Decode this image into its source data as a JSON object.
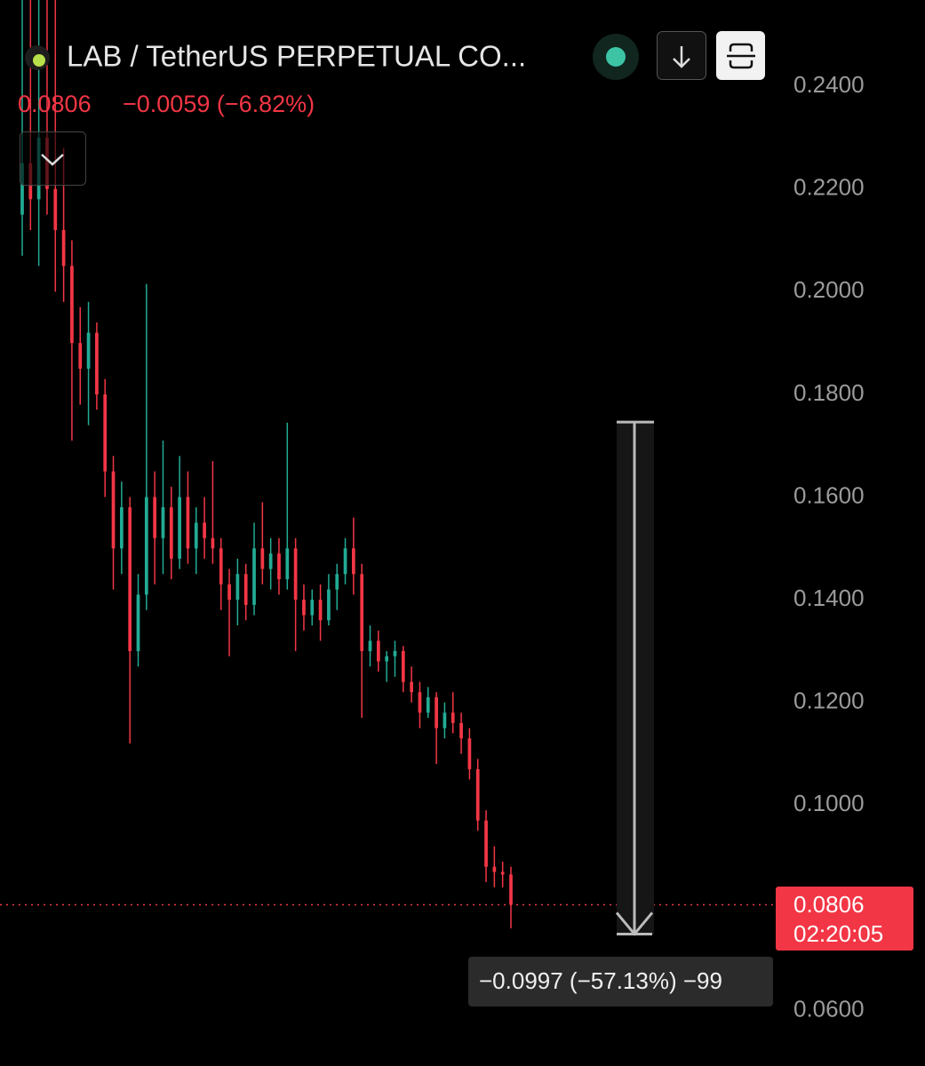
{
  "header": {
    "symbol": "LAB / TetherUS PERPETUAL CO...",
    "price": "0.0806",
    "change": "−0.0059 (−6.82%)"
  },
  "chart_data": {
    "type": "candlestick",
    "open": [
      0.215,
      0.225,
      0.218,
      0.23,
      0.22,
      0.212,
      0.205,
      0.19,
      0.185,
      0.192,
      0.18,
      0.165,
      0.15,
      0.158,
      0.13,
      0.141,
      0.16,
      0.152,
      0.158,
      0.148,
      0.16,
      0.15,
      0.155,
      0.152,
      0.15,
      0.143,
      0.14,
      0.145,
      0.139,
      0.15,
      0.146,
      0.149,
      0.144,
      0.15,
      0.14,
      0.137,
      0.14,
      0.136,
      0.142,
      0.145,
      0.15,
      0.145,
      0.13,
      0.132,
      0.128,
      0.129,
      0.13,
      0.124,
      0.122,
      0.118,
      0.121,
      0.115,
      0.118,
      0.116,
      0.113,
      0.107,
      0.097,
      0.088,
      0.087,
      0.0865
    ],
    "high": [
      0.2568,
      0.2568,
      0.2568,
      0.2568,
      0.2568,
      0.228,
      0.21,
      0.197,
      0.198,
      0.194,
      0.183,
      0.168,
      0.163,
      0.16,
      0.145,
      0.2015,
      0.165,
      0.171,
      0.162,
      0.168,
      0.165,
      0.158,
      0.16,
      0.167,
      0.152,
      0.146,
      0.148,
      0.147,
      0.155,
      0.159,
      0.152,
      0.152,
      0.1745,
      0.152,
      0.143,
      0.142,
      0.143,
      0.145,
      0.147,
      0.152,
      0.156,
      0.147,
      0.135,
      0.134,
      0.13,
      0.132,
      0.131,
      0.127,
      0.124,
      0.123,
      0.122,
      0.12,
      0.122,
      0.118,
      0.115,
      0.109,
      0.099,
      0.092,
      0.089,
      0.088
    ],
    "low": [
      0.207,
      0.212,
      0.205,
      0.215,
      0.2,
      0.198,
      0.171,
      0.178,
      0.174,
      0.177,
      0.16,
      0.142,
      0.145,
      0.112,
      0.127,
      0.138,
      0.143,
      0.145,
      0.144,
      0.146,
      0.147,
      0.145,
      0.148,
      0.147,
      0.138,
      0.129,
      0.135,
      0.136,
      0.137,
      0.143,
      0.142,
      0.141,
      0.142,
      0.13,
      0.134,
      0.135,
      0.132,
      0.135,
      0.138,
      0.143,
      0.141,
      0.117,
      0.127,
      0.126,
      0.124,
      0.125,
      0.122,
      0.12,
      0.115,
      0.117,
      0.108,
      0.113,
      0.114,
      0.11,
      0.105,
      0.095,
      0.085,
      0.084,
      0.084,
      0.076
    ],
    "close": [
      0.225,
      0.218,
      0.23,
      0.22,
      0.212,
      0.205,
      0.19,
      0.185,
      0.192,
      0.18,
      0.165,
      0.15,
      0.158,
      0.13,
      0.141,
      0.16,
      0.152,
      0.158,
      0.148,
      0.16,
      0.15,
      0.155,
      0.152,
      0.15,
      0.143,
      0.14,
      0.145,
      0.139,
      0.15,
      0.146,
      0.149,
      0.144,
      0.15,
      0.14,
      0.137,
      0.14,
      0.136,
      0.142,
      0.145,
      0.15,
      0.145,
      0.13,
      0.132,
      0.128,
      0.129,
      0.13,
      0.124,
      0.122,
      0.118,
      0.121,
      0.115,
      0.118,
      0.116,
      0.113,
      0.107,
      0.097,
      0.088,
      0.087,
      0.0865,
      0.0806
    ],
    "up_color": "#22ab94",
    "down_color": "#f23645",
    "ylim": [
      0.0492,
      0.2568
    ],
    "yticks": [
      {
        "value": 0.24,
        "label": "0.2400"
      },
      {
        "value": 0.22,
        "label": "0.2200"
      },
      {
        "value": 0.2,
        "label": "0.2000"
      },
      {
        "value": 0.18,
        "label": "0.1800"
      },
      {
        "value": 0.16,
        "label": "0.1600"
      },
      {
        "value": 0.14,
        "label": "0.1400"
      },
      {
        "value": 0.12,
        "label": "0.1200"
      },
      {
        "value": 0.1,
        "label": "0.1000"
      },
      {
        "value": 0.06,
        "label": "0.0600"
      }
    ],
    "grid": false,
    "last_price": {
      "value": 0.0806,
      "countdown": "02:20:05",
      "color": "#f23645"
    },
    "measure": {
      "start": 0.1746,
      "end": 0.0749,
      "label": "−0.0997 (−57.13%) −99"
    }
  }
}
